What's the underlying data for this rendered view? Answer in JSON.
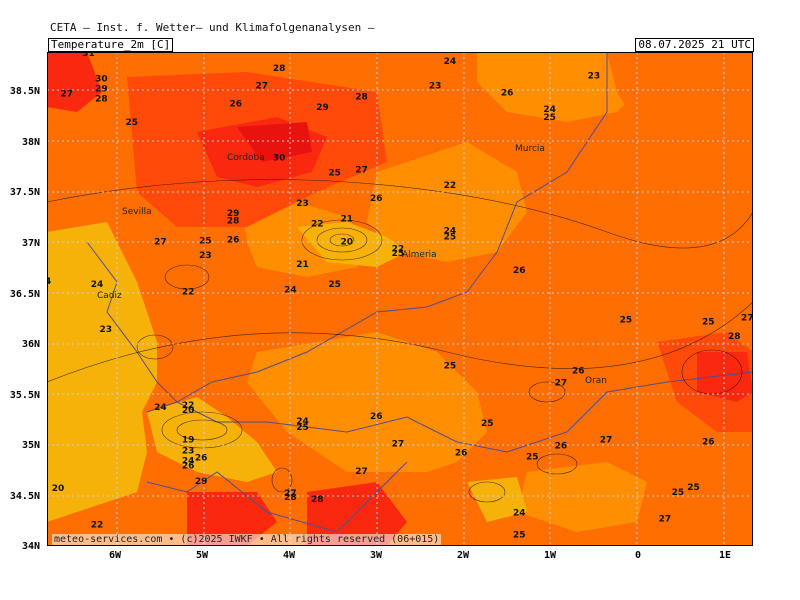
{
  "header": {
    "title": "CETA — Inst. f. Wetter— und Klimafolgenanalysen —",
    "variable": "Temperature_2m [C]",
    "valid_time": "08.07.2025 21 UTC"
  },
  "copyright": "meteo-services.com • (c)2025 IWKF • All rights reserved (06+015)",
  "axes": {
    "lat_labels": [
      "38.5N",
      "38N",
      "37.5N",
      "37N",
      "36.5N",
      "36N",
      "35.5N",
      "35N",
      "34.5N",
      "34N"
    ],
    "lon_labels": [
      "6W",
      "5W",
      "4W",
      "3W",
      "2W",
      "1W",
      "0",
      "1E"
    ]
  },
  "colors": {
    "c21_23": "#f7b20a",
    "c23_25": "#ff8f00",
    "c25_27": "#ff6e00",
    "c27_29": "#ff4a0a",
    "c29_31": "#fb2810",
    "c31_up": "#e8120f"
  },
  "cities": [
    "Cordoba",
    "Sevilla",
    "Murcia",
    "Almeria",
    "Cadiz",
    "Oran"
  ],
  "contour_labels": [
    {
      "text": "31",
      "lon": -6.4,
      "lat": 38.85
    },
    {
      "text": "30",
      "lon": -6.25,
      "lat": 38.6
    },
    {
      "text": "29",
      "lon": -6.25,
      "lat": 38.5
    },
    {
      "text": "28",
      "lon": -6.25,
      "lat": 38.4
    },
    {
      "text": "27",
      "lon": -6.65,
      "lat": 38.45
    },
    {
      "text": "28",
      "lon": -4.2,
      "lat": 38.7
    },
    {
      "text": "27",
      "lon": -4.4,
      "lat": 38.53
    },
    {
      "text": "26",
      "lon": -4.7,
      "lat": 38.35
    },
    {
      "text": "29",
      "lon": -3.7,
      "lat": 38.32
    },
    {
      "text": "28",
      "lon": -3.25,
      "lat": 38.42
    },
    {
      "text": "25",
      "lon": -5.9,
      "lat": 38.17
    },
    {
      "text": "30",
      "lon": -4.2,
      "lat": 37.82
    },
    {
      "text": "25",
      "lon": -3.56,
      "lat": 37.67
    },
    {
      "text": "27",
      "lon": -3.25,
      "lat": 37.7
    },
    {
      "text": "26",
      "lon": -3.08,
      "lat": 37.42
    },
    {
      "text": "23",
      "lon": -3.93,
      "lat": 37.37
    },
    {
      "text": "22",
      "lon": -3.76,
      "lat": 37.17
    },
    {
      "text": "21",
      "lon": -3.42,
      "lat": 37.22
    },
    {
      "text": "20",
      "lon": -3.42,
      "lat": 36.99
    },
    {
      "text": "29",
      "lon": -4.73,
      "lat": 37.27
    },
    {
      "text": "28",
      "lon": -4.73,
      "lat": 37.2
    },
    {
      "text": "25",
      "lon": -5.05,
      "lat": 37.0
    },
    {
      "text": "26",
      "lon": -4.73,
      "lat": 37.01
    },
    {
      "text": "23",
      "lon": -5.05,
      "lat": 36.86
    },
    {
      "text": "27",
      "lon": -5.57,
      "lat": 36.99
    },
    {
      "text": "21",
      "lon": -3.93,
      "lat": 36.77
    },
    {
      "text": "24",
      "lon": -4.07,
      "lat": 36.52
    },
    {
      "text": "25",
      "lon": -3.56,
      "lat": 36.57
    },
    {
      "text": "22",
      "lon": -2.83,
      "lat": 36.92
    },
    {
      "text": "25",
      "lon": -2.83,
      "lat": 36.88
    },
    {
      "text": "24",
      "lon": -2.23,
      "lat": 37.1
    },
    {
      "text": "25",
      "lon": -2.23,
      "lat": 37.04
    },
    {
      "text": "22",
      "lon": -2.23,
      "lat": 37.55
    },
    {
      "text": "24",
      "lon": -2.23,
      "lat": 38.77
    },
    {
      "text": "23",
      "lon": -2.4,
      "lat": 38.53
    },
    {
      "text": "26",
      "lon": -1.57,
      "lat": 38.46
    },
    {
      "text": "24",
      "lon": -1.08,
      "lat": 38.3
    },
    {
      "text": "25",
      "lon": -1.08,
      "lat": 38.22
    },
    {
      "text": "23",
      "lon": -0.57,
      "lat": 38.63
    },
    {
      "text": "26",
      "lon": -1.43,
      "lat": 36.71
    },
    {
      "text": "24",
      "lon": -6.9,
      "lat": 36.6
    },
    {
      "text": "22",
      "lon": -5.25,
      "lat": 36.5
    },
    {
      "text": "24",
      "lon": -6.3,
      "lat": 36.57
    },
    {
      "text": "23",
      "lon": -6.2,
      "lat": 36.13
    },
    {
      "text": "25",
      "lon": -0.2,
      "lat": 36.22
    },
    {
      "text": "25",
      "lon": 0.75,
      "lat": 36.2
    },
    {
      "text": "27",
      "lon": 1.2,
      "lat": 36.24
    },
    {
      "text": "28",
      "lon": 1.05,
      "lat": 36.06
    },
    {
      "text": "25",
      "lon": -2.23,
      "lat": 35.77
    },
    {
      "text": "26",
      "lon": -0.75,
      "lat": 35.72
    },
    {
      "text": "27",
      "lon": -0.95,
      "lat": 35.6
    },
    {
      "text": "24",
      "lon": -5.57,
      "lat": 35.36
    },
    {
      "text": "22",
      "lon": -5.25,
      "lat": 35.38
    },
    {
      "text": "20",
      "lon": -5.25,
      "lat": 35.33
    },
    {
      "text": "19",
      "lon": -5.25,
      "lat": 35.04
    },
    {
      "text": "23",
      "lon": -5.25,
      "lat": 34.93
    },
    {
      "text": "24",
      "lon": -5.25,
      "lat": 34.83
    },
    {
      "text": "26",
      "lon": -5.25,
      "lat": 34.78
    },
    {
      "text": "26",
      "lon": -5.1,
      "lat": 34.86
    },
    {
      "text": "29",
      "lon": -5.1,
      "lat": 34.63
    },
    {
      "text": "24",
      "lon": -3.93,
      "lat": 35.22
    },
    {
      "text": "25",
      "lon": -3.93,
      "lat": 35.16
    },
    {
      "text": "26",
      "lon": -3.08,
      "lat": 35.27
    },
    {
      "text": "27",
      "lon": -2.83,
      "lat": 35.0
    },
    {
      "text": "25",
      "lon": -1.8,
      "lat": 35.2
    },
    {
      "text": "26",
      "lon": -2.1,
      "lat": 34.91
    },
    {
      "text": "25",
      "lon": -1.28,
      "lat": 34.87
    },
    {
      "text": "26",
      "lon": -0.95,
      "lat": 34.98
    },
    {
      "text": "27",
      "lon": -0.43,
      "lat": 35.04
    },
    {
      "text": "26",
      "lon": 0.75,
      "lat": 35.02
    },
    {
      "text": "27",
      "lon": -3.25,
      "lat": 34.73
    },
    {
      "text": "27",
      "lon": -4.07,
      "lat": 34.51
    },
    {
      "text": "28",
      "lon": -4.07,
      "lat": 34.47
    },
    {
      "text": "28",
      "lon": -3.76,
      "lat": 34.45
    },
    {
      "text": "25",
      "lon": 0.58,
      "lat": 34.57
    },
    {
      "text": "25",
      "lon": 0.4,
      "lat": 34.52
    },
    {
      "text": "27",
      "lon": 0.25,
      "lat": 34.26
    },
    {
      "text": "24",
      "lon": -1.43,
      "lat": 34.32
    },
    {
      "text": "25",
      "lon": -1.43,
      "lat": 34.1
    },
    {
      "text": "20",
      "lon": -6.75,
      "lat": 34.56
    },
    {
      "text": "22",
      "lon": -6.3,
      "lat": 34.2
    }
  ]
}
